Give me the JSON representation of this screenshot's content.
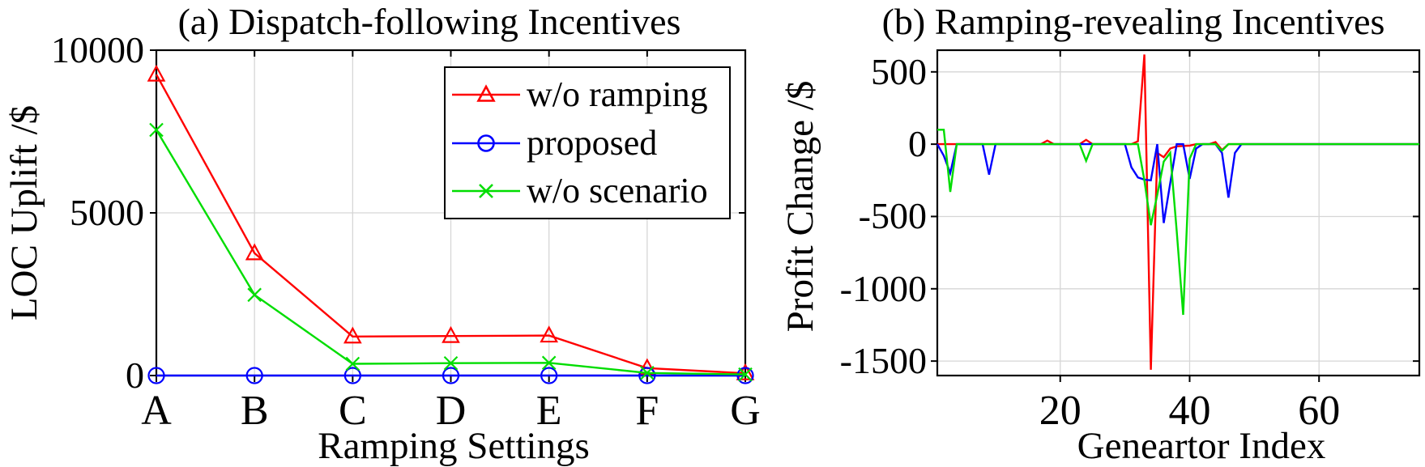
{
  "colors": {
    "red": "#ff0000",
    "blue": "#0000ff",
    "green": "#00dd00",
    "grid": "#d6d6d6",
    "axis": "#000000",
    "text": "#000000",
    "background": "#ffffff"
  },
  "chart_data": [
    {
      "id": "panel-a",
      "type": "line",
      "title": "(a) Dispatch-following Incentives",
      "xlabel": "Ramping Settings",
      "ylabel": "LOC Uplift /$",
      "categories": [
        "A",
        "B",
        "C",
        "D",
        "E",
        "F",
        "G"
      ],
      "ylim": [
        0,
        10000
      ],
      "yticks": [
        0,
        5000,
        10000
      ],
      "ytick_labels": [
        "0",
        "5000",
        "10000"
      ],
      "grid": true,
      "legend": {
        "position": "upper-right"
      },
      "series": [
        {
          "name": "w/o ramping",
          "color": "red",
          "marker": "triangle",
          "values": [
            9250,
            3760,
            1200,
            1215,
            1230,
            230,
            70
          ]
        },
        {
          "name": "proposed",
          "color": "blue",
          "marker": "circle",
          "values": [
            0,
            0,
            0,
            0,
            0,
            0,
            0
          ]
        },
        {
          "name": "w/o scenario",
          "color": "green",
          "marker": "x",
          "values": [
            7550,
            2480,
            360,
            380,
            390,
            80,
            35
          ]
        }
      ]
    },
    {
      "id": "panel-b",
      "type": "line",
      "title": "(b) Ramping-revealing Incentives",
      "xlabel": "Geneartor Index",
      "ylabel": "Profit Change /$",
      "xlim": [
        1,
        75.5
      ],
      "xticks": [
        20,
        40,
        60
      ],
      "xtick_labels": [
        "20",
        "40",
        "60"
      ],
      "ylim": [
        -1600,
        650
      ],
      "yticks": [
        500,
        0,
        -500,
        -1000,
        -1500
      ],
      "ytick_labels": [
        "500",
        "0",
        "-500",
        "-1000",
        "-1500"
      ],
      "grid": true,
      "legend": {
        "position": "none"
      },
      "series": [
        {
          "name": "w/o ramping",
          "color": "red",
          "marker": "none",
          "points": [
            [
              1,
              0
            ],
            [
              17,
              0
            ],
            [
              18,
              25
            ],
            [
              19,
              0
            ],
            [
              23,
              0
            ],
            [
              24,
              30
            ],
            [
              25,
              0
            ],
            [
              31,
              0
            ],
            [
              32,
              20
            ],
            [
              33,
              620
            ],
            [
              34,
              -1560
            ],
            [
              35,
              -60
            ],
            [
              36,
              -90
            ],
            [
              37,
              -30
            ],
            [
              38,
              -15
            ],
            [
              40,
              -10
            ],
            [
              41,
              0
            ],
            [
              43,
              0
            ],
            [
              44,
              15
            ],
            [
              45,
              -40
            ],
            [
              46,
              0
            ],
            [
              75.5,
              0
            ]
          ]
        },
        {
          "name": "proposed",
          "color": "blue",
          "marker": "none",
          "points": [
            [
              1,
              0
            ],
            [
              2,
              -80
            ],
            [
              3,
              -200
            ],
            [
              4,
              0
            ],
            [
              8,
              0
            ],
            [
              9,
              -210
            ],
            [
              10,
              0
            ],
            [
              30,
              0
            ],
            [
              31,
              -160
            ],
            [
              32,
              -230
            ],
            [
              33,
              -245
            ],
            [
              34,
              -250
            ],
            [
              35,
              0
            ],
            [
              36,
              -545
            ],
            [
              37,
              -270
            ],
            [
              38,
              0
            ],
            [
              39,
              0
            ],
            [
              40,
              -240
            ],
            [
              41,
              -30
            ],
            [
              42,
              0
            ],
            [
              44,
              0
            ],
            [
              45,
              -60
            ],
            [
              46,
              -370
            ],
            [
              47,
              -60
            ],
            [
              48,
              0
            ],
            [
              75.5,
              0
            ]
          ]
        },
        {
          "name": "w/o scenario",
          "color": "green",
          "marker": "none",
          "points": [
            [
              1,
              100
            ],
            [
              2,
              100
            ],
            [
              3,
              -330
            ],
            [
              4,
              0
            ],
            [
              23,
              0
            ],
            [
              24,
              -115
            ],
            [
              25,
              0
            ],
            [
              32,
              0
            ],
            [
              33,
              -250
            ],
            [
              34,
              -560
            ],
            [
              35,
              -350
            ],
            [
              36,
              -120
            ],
            [
              37,
              -60
            ],
            [
              38,
              -600
            ],
            [
              39,
              -1180
            ],
            [
              40,
              -100
            ],
            [
              41,
              0
            ],
            [
              44,
              0
            ],
            [
              45,
              -45
            ],
            [
              46,
              0
            ],
            [
              75.5,
              0
            ]
          ]
        }
      ]
    }
  ]
}
